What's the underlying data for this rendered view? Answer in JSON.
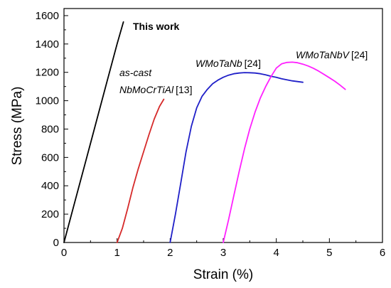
{
  "chart_data": {
    "type": "line",
    "title": "",
    "xlabel": "Strain (%)",
    "ylabel": "Stress (MPa)",
    "xlim": [
      0,
      6
    ],
    "ylim": [
      0,
      1650
    ],
    "xticks": [
      0,
      1,
      2,
      3,
      4,
      5,
      6
    ],
    "yticks": [
      0,
      200,
      400,
      600,
      800,
      1000,
      1200,
      1400,
      1600
    ],
    "grid": false,
    "series": [
      {
        "color": "#000000",
        "x": [
          0,
          0.2,
          0.4,
          0.6,
          0.8,
          1.0,
          1.12
        ],
        "y": [
          0,
          280,
          560,
          840,
          1120,
          1400,
          1555
        ]
      },
      {
        "color": "#d62a2a",
        "x": [
          1.0,
          1.1,
          1.2,
          1.3,
          1.4,
          1.5,
          1.6,
          1.7,
          1.8,
          1.88
        ],
        "y": [
          0,
          100,
          240,
          390,
          520,
          640,
          760,
          870,
          960,
          1010
        ]
      },
      {
        "color": "#1f1fc8",
        "x": [
          2.0,
          2.1,
          2.2,
          2.3,
          2.4,
          2.5,
          2.6,
          2.7,
          2.8,
          2.9,
          3.0,
          3.1,
          3.2,
          3.3,
          3.4,
          3.5,
          3.6,
          3.7,
          3.8,
          3.9,
          4.0,
          4.1,
          4.2,
          4.3,
          4.4,
          4.5
        ],
        "y": [
          0,
          200,
          420,
          640,
          820,
          950,
          1030,
          1080,
          1120,
          1145,
          1165,
          1180,
          1190,
          1195,
          1198,
          1197,
          1195,
          1190,
          1182,
          1172,
          1165,
          1155,
          1147,
          1140,
          1135,
          1130
        ]
      },
      {
        "color": "#ff20ff",
        "x": [
          3.0,
          3.1,
          3.2,
          3.3,
          3.4,
          3.5,
          3.6,
          3.7,
          3.8,
          3.9,
          4.0,
          4.1,
          4.2,
          4.3,
          4.4,
          4.5,
          4.6,
          4.7,
          4.8,
          4.9,
          5.0,
          5.1,
          5.2,
          5.3
        ],
        "y": [
          0,
          160,
          330,
          500,
          660,
          800,
          920,
          1020,
          1100,
          1170,
          1230,
          1260,
          1270,
          1272,
          1268,
          1258,
          1245,
          1228,
          1208,
          1185,
          1162,
          1138,
          1110,
          1080
        ]
      }
    ],
    "annotations": [
      {
        "text": "This work",
        "style": "bold"
      },
      {
        "text": "as-cast",
        "style": "italic"
      },
      {
        "text": "NbMoCrTiAl",
        "style": "italic",
        "ref": "[13]"
      },
      {
        "text": "WMoTaNb",
        "style": "italic",
        "ref": "[24]"
      },
      {
        "text": "WMoTaNbV",
        "style": "italic",
        "ref": "[24]"
      }
    ]
  }
}
